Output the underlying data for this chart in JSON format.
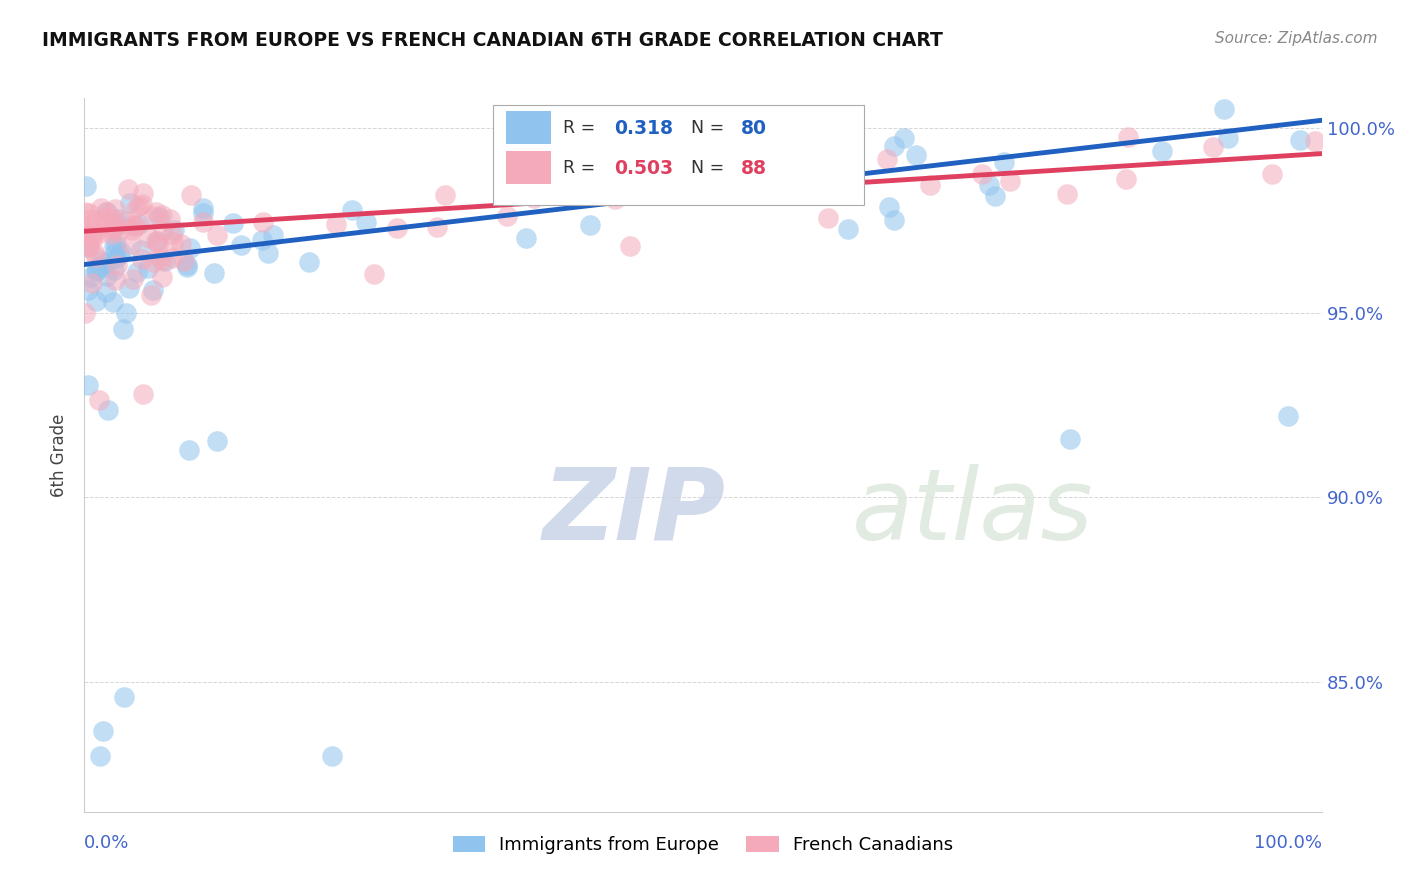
{
  "title": "IMMIGRANTS FROM EUROPE VS FRENCH CANADIAN 6TH GRADE CORRELATION CHART",
  "source": "Source: ZipAtlas.com",
  "ylabel": "6th Grade",
  "xlim": [
    0.0,
    1.0
  ],
  "ylim": [
    0.815,
    1.008
  ],
  "yticks": [
    0.85,
    0.9,
    0.95,
    1.0
  ],
  "ytick_labels": [
    "85.0%",
    "90.0%",
    "95.0%",
    "100.0%"
  ],
  "xtick_labels": [
    "0.0%",
    "100.0%"
  ],
  "blue_R": "0.318",
  "blue_N": "80",
  "pink_R": "0.503",
  "pink_N": "88",
  "blue_color": "#90C4EE",
  "pink_color": "#F4AABB",
  "blue_line_color": "#2060C0",
  "pink_line_color": "#E04060",
  "legend_label_blue": "Immigrants from Europe",
  "legend_label_pink": "French Canadians",
  "blue_line_x0": 0.0,
  "blue_line_y0": 0.963,
  "blue_line_x1": 1.0,
  "blue_line_y1": 1.002,
  "pink_line_x0": 0.0,
  "pink_line_y0": 0.972,
  "pink_line_x1": 1.0,
  "pink_line_y1": 0.993
}
